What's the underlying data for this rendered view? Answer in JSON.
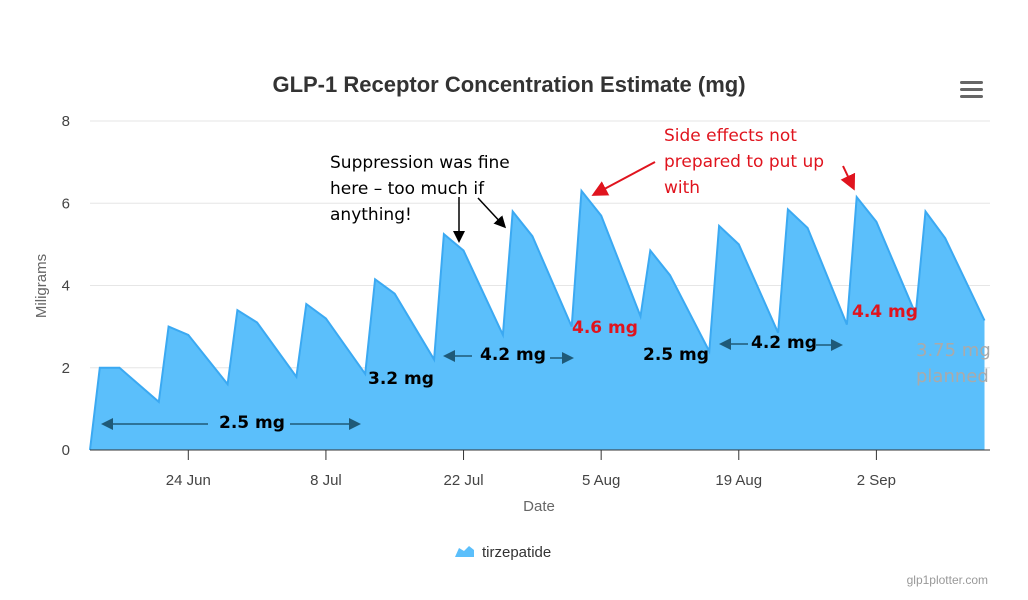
{
  "chart_data": {
    "type": "area",
    "title": "GLP-1 Receptor Concentration Estimate (mg)",
    "xlabel": "Date",
    "ylabel": "Miligrams",
    "ylim": [
      0,
      8
    ],
    "yticks": [
      "0",
      "2",
      "4",
      "6",
      "8"
    ],
    "xticks": [
      "24 Jun",
      "8 Jul",
      "22 Jul",
      "5 Aug",
      "19 Aug",
      "2 Sep"
    ],
    "grid": true,
    "legend": "bottom-center",
    "series": [
      {
        "name": "tirzepatide",
        "color": "#5bbffb",
        "line_color": "#3ba9f2",
        "points": [
          [
            "14 Jun",
            0
          ],
          [
            "15 Jun",
            2.0
          ],
          [
            "17 Jun",
            2.0
          ],
          [
            "21 Jun",
            1.17
          ],
          [
            "22 Jun",
            3.0
          ],
          [
            "24 Jun",
            2.8
          ],
          [
            "28 Jun",
            1.6
          ],
          [
            "29 Jun",
            3.4
          ],
          [
            "1 Jul",
            3.1
          ],
          [
            "5 Jul",
            1.78
          ],
          [
            "6 Jul",
            3.55
          ],
          [
            "8 Jul",
            3.2
          ],
          [
            "12 Jul",
            1.85
          ],
          [
            "13 Jul",
            4.15
          ],
          [
            "15 Jul",
            3.8
          ],
          [
            "19 Jul",
            2.2
          ],
          [
            "20 Jul",
            5.25
          ],
          [
            "22 Jul",
            4.85
          ],
          [
            "26 Jul",
            2.8
          ],
          [
            "27 Jul",
            5.8
          ],
          [
            "29 Jul",
            5.2
          ],
          [
            "2 Aug",
            3.0
          ],
          [
            "3 Aug",
            6.3
          ],
          [
            "5 Aug",
            5.7
          ],
          [
            "9 Aug",
            3.25
          ],
          [
            "10 Aug",
            4.85
          ],
          [
            "12 Aug",
            4.25
          ],
          [
            "16 Aug",
            2.4
          ],
          [
            "17 Aug",
            5.45
          ],
          [
            "19 Aug",
            5.0
          ],
          [
            "23 Aug",
            2.85
          ],
          [
            "24 Aug",
            5.85
          ],
          [
            "26 Aug",
            5.4
          ],
          [
            "30 Aug",
            3.05
          ],
          [
            "31 Aug",
            6.15
          ],
          [
            "2 Sep",
            5.55
          ],
          [
            "6 Sep",
            3.3
          ],
          [
            "7 Sep",
            5.8
          ],
          [
            "9 Sep",
            5.15
          ],
          [
            "13 Sep",
            3.15
          ]
        ]
      }
    ],
    "annotations": {
      "suppression": "Suppression was fine here – too much if anything!",
      "side_effects": "Side effects not prepared to put up with",
      "dose_25_a": "2.5 mg",
      "dose_32": "3.2 mg",
      "dose_42_a": "4.2 mg",
      "dose_46": "4.6 mg",
      "dose_25_b": "2.5 mg",
      "dose_42_b": "4.2 mg",
      "dose_44": "4.4 mg",
      "dose_375": "3.75 mg planned"
    },
    "colors": {
      "red": "#e0141e",
      "arrow": "#1f5a78",
      "planned": "#aaaaaa"
    }
  },
  "menu_icon": "hamburger-menu-icon",
  "credits": "glp1plotter.com"
}
